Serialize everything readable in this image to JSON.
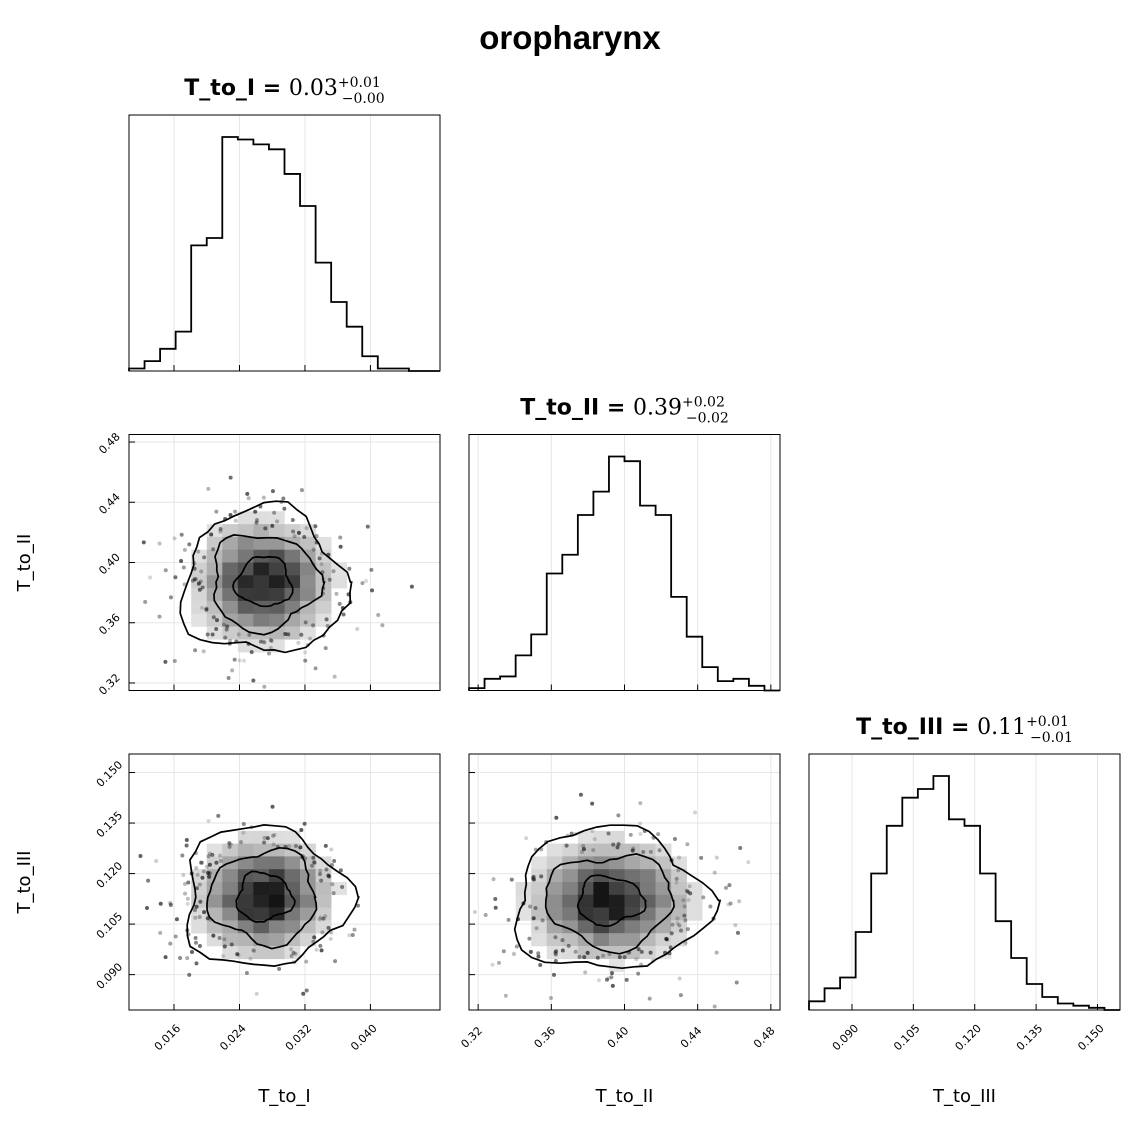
{
  "chart_data": {
    "type": "corner",
    "title": "oropharynx",
    "params": [
      {
        "name": "T_to_I",
        "median": "0.03",
        "plus": "+0.01",
        "minus": "−0.00",
        "range": [
          0.0105,
          0.0485
        ],
        "ticks": [
          0.016,
          0.024,
          0.032,
          0.04
        ],
        "tick_labels": [
          "0.016",
          "0.024",
          "0.032",
          "0.040"
        ]
      },
      {
        "name": "T_to_II",
        "median": "0.39",
        "plus": "+0.02",
        "minus": "−0.02",
        "range": [
          0.315,
          0.485
        ],
        "ticks": [
          0.32,
          0.36,
          0.4,
          0.44,
          0.48
        ],
        "tick_labels": [
          "0.32",
          "0.36",
          "0.40",
          "0.44",
          "0.48"
        ]
      },
      {
        "name": "T_to_III",
        "median": "0.11",
        "plus": "+0.01",
        "minus": "−0.01",
        "range": [
          0.0795,
          0.1555
        ],
        "ticks": [
          0.09,
          0.105,
          0.12,
          0.135,
          0.15
        ],
        "tick_labels": [
          "0.090",
          "0.105",
          "0.120",
          "0.135",
          "0.150"
        ]
      }
    ],
    "histograms": [
      {
        "param": "T_to_I",
        "bin_edges_range": [
          0.0105,
          0.0485
        ],
        "bins": 20,
        "counts": [
          1,
          4,
          9,
          16,
          51,
          54,
          95,
          94,
          92,
          90,
          80,
          67,
          44,
          28,
          18,
          6,
          1,
          1,
          0,
          0
        ]
      },
      {
        "param": "T_to_II",
        "bin_edges_range": [
          0.315,
          0.485
        ],
        "bins": 20,
        "counts": [
          1,
          5,
          6,
          15,
          24,
          50,
          58,
          75,
          85,
          100,
          98,
          79,
          75,
          40,
          23,
          10,
          4,
          5,
          2,
          0
        ]
      },
      {
        "param": "T_to_III",
        "bin_edges_range": [
          0.0795,
          0.1555
        ],
        "bins": 20,
        "counts": [
          4,
          10,
          15,
          36,
          63,
          85,
          98,
          102,
          108,
          88,
          85,
          63,
          41,
          24,
          12,
          6,
          3,
          2,
          1,
          0
        ]
      }
    ],
    "joint": [
      {
        "x": "T_to_I",
        "y": "T_to_II",
        "center": [
          0.027,
          0.387
        ],
        "spread": [
          0.0045,
          0.022
        ]
      },
      {
        "x": "T_to_I",
        "y": "T_to_III",
        "center": [
          0.027,
          0.113
        ],
        "spread": [
          0.0045,
          0.0095
        ]
      },
      {
        "x": "T_to_II",
        "y": "T_to_III",
        "center": [
          0.392,
          0.112
        ],
        "spread": [
          0.024,
          0.0095
        ]
      }
    ],
    "grid": true,
    "colors": {
      "line": "#000000",
      "grid": "#e6e6e6",
      "frame": "#000000"
    }
  }
}
